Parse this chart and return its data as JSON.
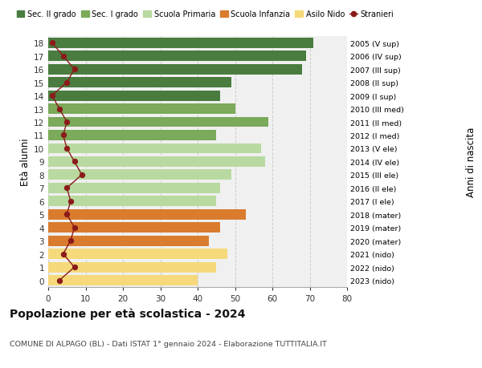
{
  "ages": [
    18,
    17,
    16,
    15,
    14,
    13,
    12,
    11,
    10,
    9,
    8,
    7,
    6,
    5,
    4,
    3,
    2,
    1,
    0
  ],
  "bar_values": [
    71,
    69,
    68,
    49,
    46,
    50,
    59,
    45,
    57,
    58,
    49,
    46,
    45,
    53,
    46,
    43,
    48,
    45,
    40
  ],
  "stranieri": [
    1,
    4,
    7,
    5,
    1,
    3,
    5,
    4,
    5,
    7,
    9,
    5,
    6,
    5,
    7,
    6,
    4,
    7,
    3
  ],
  "right_labels": [
    "2005 (V sup)",
    "2006 (IV sup)",
    "2007 (III sup)",
    "2008 (II sup)",
    "2009 (I sup)",
    "2010 (III med)",
    "2011 (II med)",
    "2012 (I med)",
    "2013 (V ele)",
    "2014 (IV ele)",
    "2015 (III ele)",
    "2016 (II ele)",
    "2017 (I ele)",
    "2018 (mater)",
    "2019 (mater)",
    "2020 (mater)",
    "2021 (nido)",
    "2022 (nido)",
    "2023 (nido)"
  ],
  "bar_colors": [
    "#4a7c40",
    "#4a7c40",
    "#4a7c40",
    "#4a7c40",
    "#4a7c40",
    "#7aaa5a",
    "#7aaa5a",
    "#7aaa5a",
    "#b8d9a0",
    "#b8d9a0",
    "#b8d9a0",
    "#b8d9a0",
    "#b8d9a0",
    "#d97c2e",
    "#d97c2e",
    "#d97c2e",
    "#f5d97a",
    "#f5d97a",
    "#f5d97a"
  ],
  "legend_labels": [
    "Sec. II grado",
    "Sec. I grado",
    "Scuola Primaria",
    "Scuola Infanzia",
    "Asilo Nido",
    "Stranieri"
  ],
  "legend_colors": [
    "#4a7c40",
    "#7aaa5a",
    "#b8d9a0",
    "#d97c2e",
    "#f5d97a",
    "#8b1a1a"
  ],
  "title": "Popolazione per età scolastica - 2024",
  "subtitle": "COMUNE DI ALPAGO (BL) - Dati ISTAT 1° gennaio 2024 - Elaborazione TUTTITALIA.IT",
  "ylabel_left": "Età alunni",
  "ylabel_right": "Anni di nascita",
  "xlim": [
    0,
    80
  ],
  "xticks": [
    0,
    10,
    20,
    30,
    40,
    50,
    60,
    70,
    80
  ],
  "background_color": "#ffffff",
  "bar_bg_color": "#f0f0f0",
  "grid_color": "#cccccc"
}
